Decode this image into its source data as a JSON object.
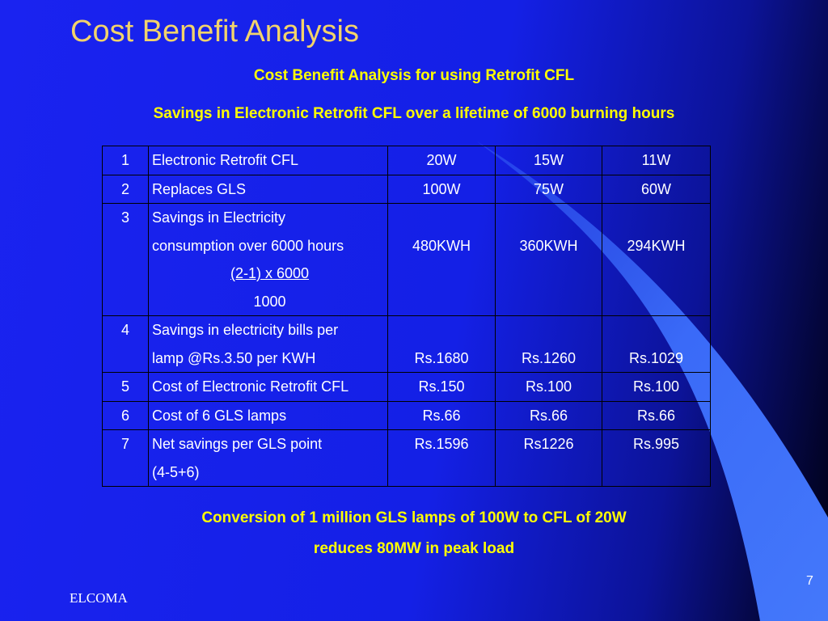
{
  "title": "Cost Benefit Analysis",
  "subtitle_1": "Cost Benefit Analysis for using Retrofit CFL",
  "subtitle_2": "Savings in Electronic Retrofit CFL over a lifetime of 6000 burning hours",
  "table": {
    "rows": [
      {
        "num": "1",
        "desc": [
          "Electronic Retrofit CFL"
        ],
        "v1": "20W",
        "v2": "15W",
        "v3": "11W"
      },
      {
        "num": "2",
        "desc": [
          "Replaces GLS"
        ],
        "v1": "100W",
        "v2": "75W",
        "v3": "60W"
      },
      {
        "num": "3",
        "desc": [
          "Savings in Electricity",
          "consumption over 6000 hours"
        ],
        "formula_top": "(2-1) x 6000",
        "formula_bottom": "1000",
        "v1": "480KWH",
        "v2": "360KWH",
        "v3": "294KWH"
      },
      {
        "num": "4",
        "desc": [
          "Savings in electricity bills per",
          "lamp @Rs.3.50 per KWH"
        ],
        "v1": "Rs.1680",
        "v2": "Rs.1260",
        "v3": "Rs.1029"
      },
      {
        "num": "5",
        "desc": [
          "Cost of Electronic Retrofit CFL"
        ],
        "v1": "Rs.150",
        "v2": "Rs.100",
        "v3": "Rs.100"
      },
      {
        "num": "6",
        "desc": [
          "Cost of 6 GLS lamps"
        ],
        "v1": "Rs.66",
        "v2": "Rs.66",
        "v3": "Rs.66"
      },
      {
        "num": "7",
        "desc": [
          "Net savings per GLS point",
          "(4-5+6)"
        ],
        "v1": "Rs.1596",
        "v2": "Rs1226",
        "v3": "Rs.995"
      }
    ]
  },
  "conclusion_1": "Conversion of 1 million GLS lamps of 100W to CFL of 20W",
  "conclusion_2": "reduces 80MW in peak load",
  "footer": "ELCOMA",
  "page_number": "7",
  "colors": {
    "title": "#f2d36b",
    "highlight_text": "#ffff00",
    "background": "#1a23f0",
    "swoosh": "#3f6ff8"
  }
}
